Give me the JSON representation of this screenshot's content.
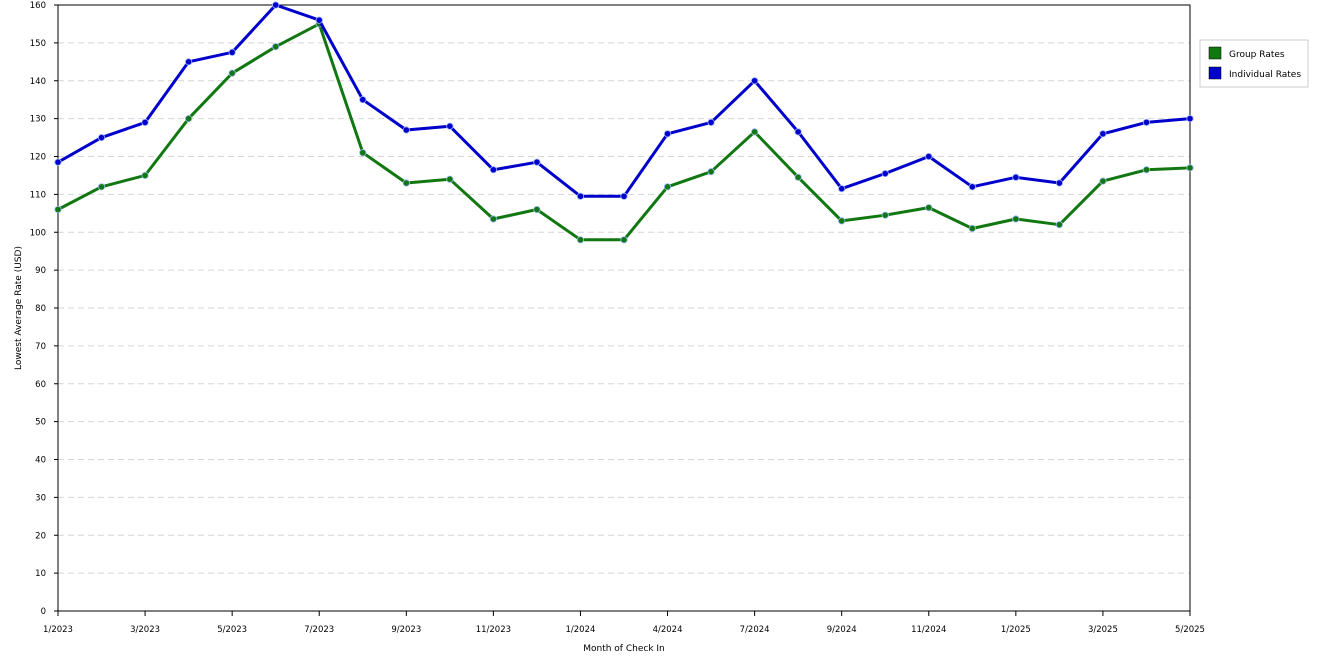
{
  "chart_data": {
    "type": "line",
    "title": "",
    "xlabel": "Month of Check In",
    "ylabel": "Lowest Average Rate (USD)",
    "ylim": [
      0,
      160
    ],
    "yticks": [
      0,
      10,
      20,
      30,
      40,
      50,
      60,
      70,
      80,
      90,
      100,
      110,
      120,
      130,
      140,
      150,
      160
    ],
    "grid": "horizontal-dashed",
    "legend_position": "right",
    "months": [
      "1/2023",
      "2/2023",
      "3/2023",
      "4/2023",
      "5/2023",
      "6/2023",
      "7/2023",
      "8/2023",
      "9/2023",
      "10/2023",
      "11/2023",
      "12/2023",
      "1/2024",
      "3/2024",
      "4/2024",
      "5/2024",
      "7/2024",
      "8/2024",
      "9/2024",
      "10/2024",
      "11/2024",
      "12/2024",
      "1/2025",
      "2/2025",
      "3/2025",
      "4/2025",
      "5/2025"
    ],
    "tick_labels": [
      "1/2023",
      "3/2023",
      "5/2023",
      "7/2023",
      "9/2023",
      "11/2023",
      "1/2024",
      "4/2024",
      "7/2024",
      "9/2024",
      "11/2024",
      "1/2025",
      "3/2025",
      "5/2025"
    ],
    "series": [
      {
        "name": "Group Rates",
        "color": "#117711",
        "values": [
          106,
          112,
          115,
          130,
          142,
          149,
          155,
          121,
          113,
          114,
          103.5,
          106,
          98,
          98,
          112,
          116,
          126.5,
          114.5,
          103,
          104.5,
          106.5,
          101,
          103.5,
          102,
          113.5,
          116.5,
          117
        ]
      },
      {
        "name": "Individual Rates",
        "color": "#0000cc",
        "values": [
          118.5,
          125,
          129,
          145,
          147.5,
          160,
          156,
          135,
          127,
          128,
          116.5,
          118.5,
          109.5,
          109.5,
          126,
          129,
          140,
          126.5,
          111.5,
          115.5,
          120,
          112,
          114.5,
          113,
          126,
          129,
          130
        ]
      }
    ]
  }
}
